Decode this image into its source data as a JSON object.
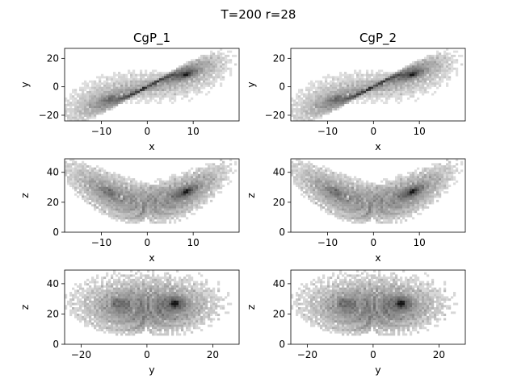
{
  "figure": {
    "suptitle": "T=200 r=28"
  },
  "chart_data": [
    {
      "type": "heatmap",
      "title": "CgP_1",
      "xlabel": "x",
      "ylabel": "y",
      "xlim": [
        -18,
        20
      ],
      "ylim": [
        -24,
        27
      ],
      "xticks": [
        -10,
        0,
        10
      ],
      "yticks": [
        -20,
        0,
        20
      ],
      "projection": "x-y",
      "colormap": "greys"
    },
    {
      "type": "heatmap",
      "title": "CgP_2",
      "xlabel": "x",
      "ylabel": "y",
      "xlim": [
        -18,
        20
      ],
      "ylim": [
        -24,
        27
      ],
      "xticks": [
        -10,
        0,
        10
      ],
      "yticks": [
        -20,
        0,
        20
      ],
      "projection": "x-y",
      "colormap": "greys"
    },
    {
      "type": "heatmap",
      "title": "",
      "xlabel": "x",
      "ylabel": "z",
      "xlim": [
        -18,
        20
      ],
      "ylim": [
        0,
        49
      ],
      "xticks": [
        -10,
        0,
        10
      ],
      "yticks": [
        0,
        20,
        40
      ],
      "projection": "x-z",
      "colormap": "greys"
    },
    {
      "type": "heatmap",
      "title": "",
      "xlabel": "x",
      "ylabel": "z",
      "xlim": [
        -18,
        20
      ],
      "ylim": [
        0,
        49
      ],
      "xticks": [
        -10,
        0,
        10
      ],
      "yticks": [
        0,
        20,
        40
      ],
      "projection": "x-z",
      "colormap": "greys"
    },
    {
      "type": "heatmap",
      "title": "",
      "xlabel": "y",
      "ylabel": "z",
      "xlim": [
        -25,
        28
      ],
      "ylim": [
        0,
        49
      ],
      "xticks": [
        -20,
        0,
        20
      ],
      "yticks": [
        0,
        20,
        40
      ],
      "projection": "y-z",
      "colormap": "greys"
    },
    {
      "type": "heatmap",
      "title": "",
      "xlabel": "y",
      "ylabel": "z",
      "xlim": [
        -25,
        28
      ],
      "ylim": [
        0,
        49
      ],
      "xticks": [
        -20,
        0,
        20
      ],
      "yticks": [
        0,
        20,
        40
      ],
      "projection": "y-z",
      "colormap": "greys"
    }
  ]
}
